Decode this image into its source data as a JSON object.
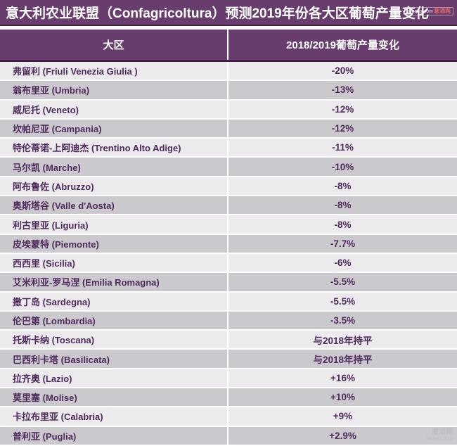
{
  "title": "意大利农业联盟（Confagricoltura）预测2019年份各大区葡萄产量变化",
  "watermark_top": {
    "site": "wineita.com",
    "name": "意酒网"
  },
  "watermark_bottom": {
    "name": "意酒网",
    "site": "wineita.com"
  },
  "colors": {
    "header_purple": "#693C6E",
    "header_border": "#402045",
    "row_light": "#ECEAED",
    "row_dark": "#CBC9CE",
    "row_text": "#4E2B5B",
    "title_text": "#FFFFFF"
  },
  "chart_data": {
    "type": "table",
    "title": "意大利农业联盟（Confagricoltura）预测2019年份各大区葡萄产量变化",
    "columns": [
      "大区",
      "2018/2019葡萄产量变化"
    ],
    "rows": [
      {
        "region": "弗留利 (Friuli Venezia Giulia )",
        "change": "-20%"
      },
      {
        "region": "翁布里亚 (Umbria)",
        "change": "-13%"
      },
      {
        "region": "威尼托 (Veneto)",
        "change": "-12%"
      },
      {
        "region": "坎帕尼亚 (Campania)",
        "change": "-12%"
      },
      {
        "region": "特伦蒂诺-上阿迪杰 (Trentino Alto Adige)",
        "change": "-11%"
      },
      {
        "region": "马尔凯 (Marche)",
        "change": "-10%"
      },
      {
        "region": "阿布鲁佐 (Abruzzo)",
        "change": "-8%"
      },
      {
        "region": "奥斯塔谷 (Valle d'Aosta)",
        "change": "-8%"
      },
      {
        "region": "利古里亚 (Liguria)",
        "change": "-8%"
      },
      {
        "region": "皮埃蒙特 (Piemonte)",
        "change": "-7.7%"
      },
      {
        "region": "西西里 (Sicilia)",
        "change": "-6%"
      },
      {
        "region": "艾米利亚-罗马涅 (Emilia Romagna)",
        "change": "-5.5%"
      },
      {
        "region": "撒丁岛 (Sardegna)",
        "change": "-5.5%"
      },
      {
        "region": "伦巴第 (Lombardia)",
        "change": "-3.5%"
      },
      {
        "region": "托斯卡纳 (Toscana)",
        "change": "与2018年持平"
      },
      {
        "region": "巴西利卡塔 (Basilicata)",
        "change": "与2018年持平"
      },
      {
        "region": "拉齐奥 (Lazio)",
        "change": "+16%"
      },
      {
        "region": "莫里塞 (Molise)",
        "change": "+10%"
      },
      {
        "region": "卡拉布里亚 (Calabria)",
        "change": "+9%"
      },
      {
        "region": "普利亚 (Puglia)",
        "change": "+2.9%"
      }
    ]
  }
}
